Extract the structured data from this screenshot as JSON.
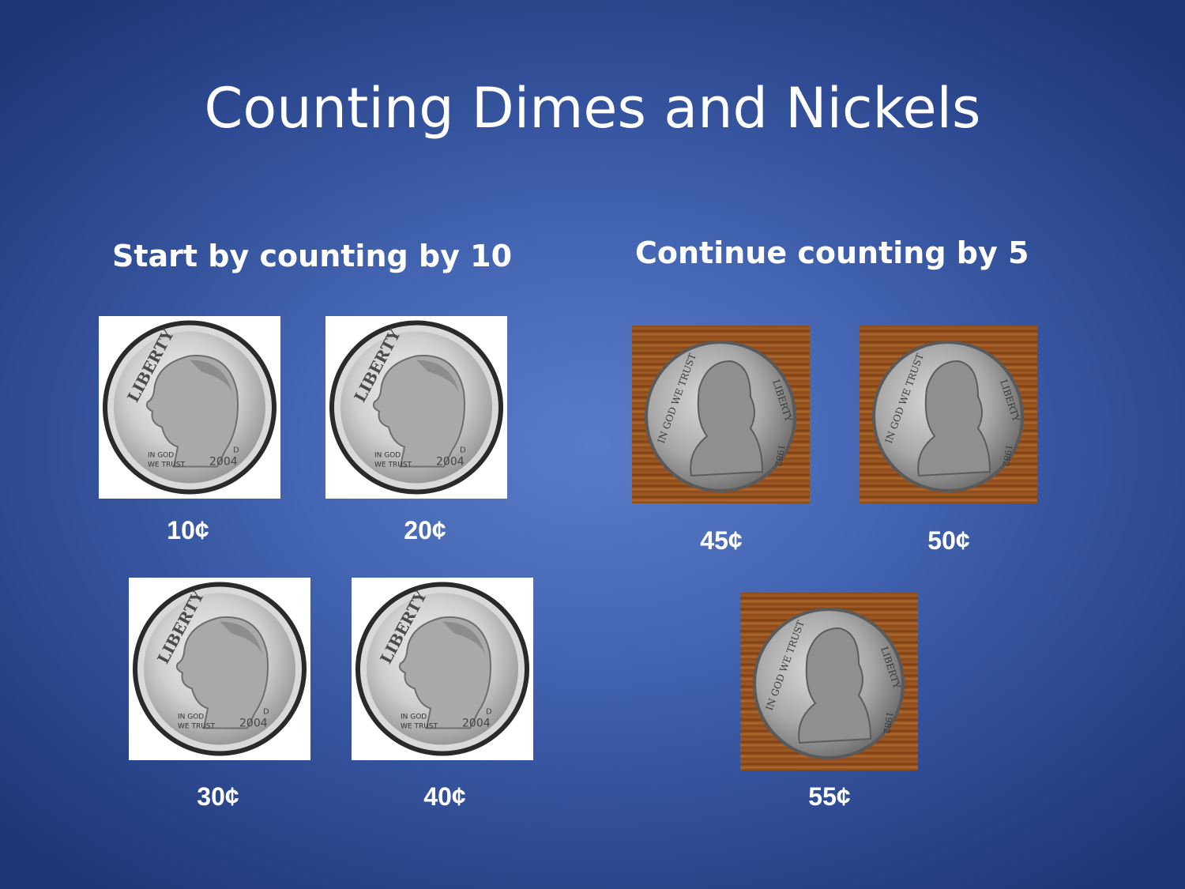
{
  "slide": {
    "title": "Counting Dimes and Nickels"
  },
  "dimes_section": {
    "heading": "Start by counting by 10",
    "coin_icon": "dime-icon",
    "coin_text": {
      "rim_top": "LIBERTY",
      "motto_line1": "IN GOD",
      "motto_line2": "WE TRUST",
      "year": "2004",
      "mint_mark": "D"
    },
    "amounts": [
      "10¢",
      "20¢",
      "30¢",
      "40¢"
    ]
  },
  "nickels_section": {
    "heading": "Continue counting by 5",
    "coin_icon": "nickel-icon",
    "coin_text": {
      "motto": "IN GOD WE TRUST",
      "rim_right": "LIBERTY",
      "year": "1982"
    },
    "amounts": [
      "45¢",
      "50¢",
      "55¢"
    ]
  },
  "colors": {
    "background_center": "#5a7cc8",
    "background_edge": "#1f3573",
    "text": "#ffffff",
    "wood": "#8a4a1c",
    "coin_silver": "#c8c8c8"
  }
}
